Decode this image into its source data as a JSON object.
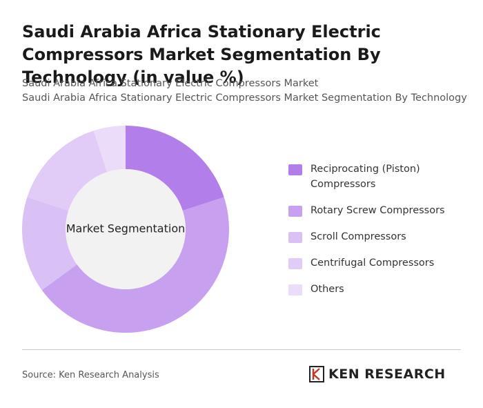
{
  "chart_data": {
    "type": "donut",
    "title": "Saudi Arabia Africa Stationary Electric Compressors Market Segmentation By Technology (in value %)",
    "subtitle": [
      "Saudi Arabia Africa Stationary Electric Compressors Market",
      "Saudi Arabia Africa Stationary Electric Compressors Market Segmentation By Technology"
    ],
    "center_label": "Market Segmentation",
    "categories": [
      "Reciprocating (Piston) Compressors",
      "Rotary Screw Compressors",
      "Scroll Compressors",
      "Centrifugal Compressors",
      "Others"
    ],
    "values": [
      20,
      45,
      15,
      15,
      5
    ],
    "colors": [
      "#b27fea",
      "#c7a0f0",
      "#d9c0f5",
      "#e1cbf7",
      "#ebdcfa"
    ],
    "source": "Source: Ken Research Analysis",
    "brand": "KEN RESEARCH"
  }
}
